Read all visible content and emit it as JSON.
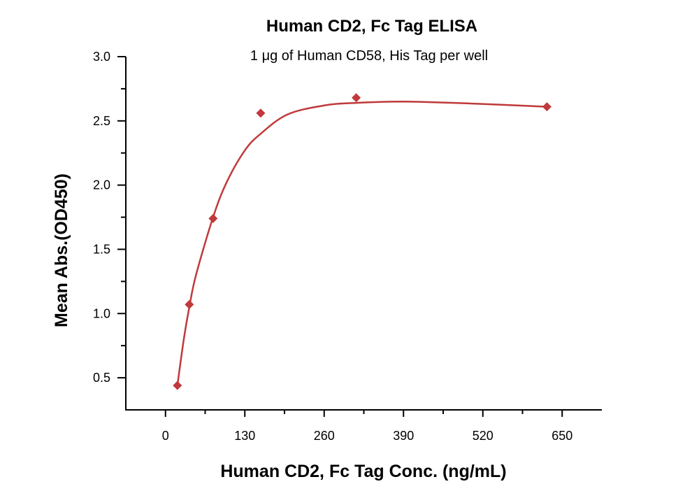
{
  "chart_data": {
    "type": "scatter",
    "title": "Human CD2, Fc Tag ELISA",
    "subtitle": "1 μg of Human CD58, His Tag per well",
    "xlabel": "Human CD2, Fc Tag Conc. (ng/mL)",
    "ylabel": "Mean Abs.(OD450)",
    "xlim": [
      -65,
      715
    ],
    "ylim": [
      0.25,
      3.0
    ],
    "xticks": [
      0,
      130,
      260,
      390,
      520,
      650
    ],
    "xtick_labels": [
      "0",
      "130",
      "260",
      "390",
      "520",
      "650"
    ],
    "yticks": [
      0.5,
      1.0,
      1.5,
      2.0,
      2.5,
      3.0
    ],
    "ytick_labels": [
      "0.5",
      "1.0",
      "1.5",
      "2.0",
      "2.5",
      "3.0"
    ],
    "grid": false,
    "color": "#c0393b",
    "points": {
      "x": [
        19.5,
        39,
        78,
        156,
        312.5,
        625
      ],
      "y": [
        0.44,
        1.07,
        1.74,
        2.56,
        2.68,
        2.61
      ]
    },
    "fit_curve": {
      "x": [
        19.5,
        30,
        39,
        50,
        78,
        100,
        130,
        156,
        200,
        260,
        312,
        390,
        500,
        625
      ],
      "y": [
        0.44,
        0.8,
        1.05,
        1.3,
        1.75,
        2.02,
        2.27,
        2.4,
        2.55,
        2.62,
        2.64,
        2.65,
        2.635,
        2.61
      ]
    }
  }
}
